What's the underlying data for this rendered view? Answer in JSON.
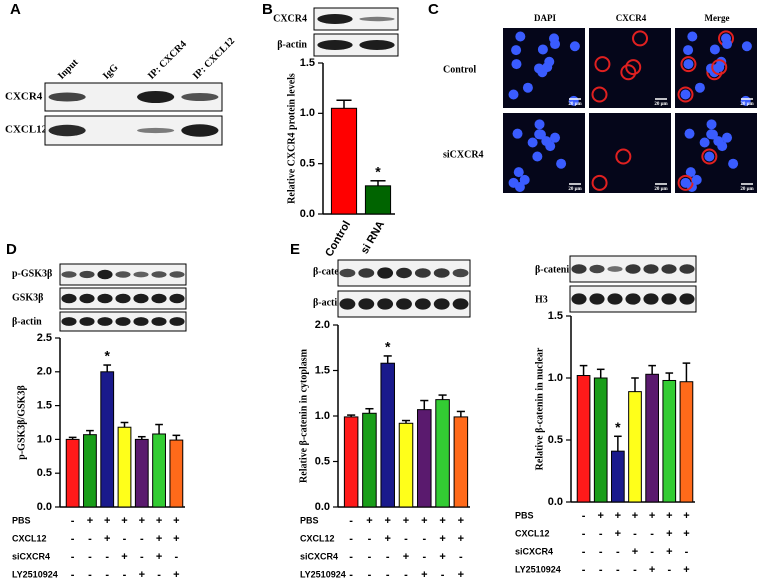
{
  "panels": {
    "A": {
      "label": "A",
      "lanes": [
        "Input",
        "IgG",
        "IP: CXCR4",
        "IP: CXCL12"
      ],
      "rows": [
        "CXCR4",
        "CXCL12"
      ]
    },
    "B": {
      "label": "B",
      "blots": [
        "CXCR4",
        "β-actin"
      ]
    },
    "C": {
      "label": "C",
      "columns": [
        "DAPI",
        "CXCR4",
        "Merge"
      ],
      "rows": [
        "Control",
        "siCXCR4"
      ],
      "scale": "20 μm"
    },
    "D": {
      "label": "D",
      "blots": [
        "p-GSK3β",
        "GSK3β",
        "β-actin"
      ]
    },
    "E": {
      "label": "E",
      "blots": [
        "β-catenin",
        "β-actin"
      ],
      "blots_right": [
        "β-catenin",
        "H3"
      ]
    }
  },
  "chart_data": [
    {
      "type": "bar",
      "ylabel": "Relative CXCR4 protein levels",
      "categories": [
        "Control",
        "si RNA"
      ],
      "values": [
        1.05,
        0.28
      ],
      "errors": [
        0.08,
        0.05
      ],
      "significance": [
        null,
        "*"
      ],
      "colors": [
        "#ff0000",
        "#006400"
      ],
      "ylim": [
        0,
        1.5
      ],
      "yticks": [
        {
          "value": 0,
          "label": "0.0"
        },
        0.5,
        {
          "value": 1,
          "label": "1.0"
        },
        1.5
      ]
    },
    {
      "type": "bar",
      "ylabel": "p-GSK3β/GSK3β",
      "categories": [
        null,
        null,
        null,
        null,
        null,
        null,
        null
      ],
      "values": [
        1.0,
        1.07,
        2.0,
        1.18,
        1.0,
        1.08,
        0.99
      ],
      "errors": [
        0.03,
        0.06,
        0.1,
        0.07,
        0.04,
        0.14,
        0.07
      ],
      "significance": [
        null,
        null,
        "*",
        null,
        null,
        null,
        null
      ],
      "colors": [
        "#ff1a1a",
        "#1a9e1a",
        "#1a1a8c",
        "#ffff1a",
        "#5a1a6e",
        "#33cc33",
        "#ff6a1a"
      ],
      "ylim": [
        0,
        2.5
      ],
      "yticks": [
        {
          "value": 0,
          "label": "0.0"
        },
        0.5,
        {
          "value": 1,
          "label": "1.0"
        },
        1.5,
        {
          "value": 2,
          "label": "2.0"
        },
        2.5
      ],
      "treatments": [
        {
          "label": "PBS",
          "signs": [
            "-",
            "+",
            "+",
            "+",
            "+",
            "+",
            "+"
          ]
        },
        {
          "label": "CXCL12",
          "signs": [
            "-",
            "-",
            "+",
            "-",
            "-",
            "+",
            "+"
          ]
        },
        {
          "label": "siCXCR4",
          "signs": [
            "-",
            "-",
            "-",
            "+",
            "-",
            "+",
            "-"
          ]
        },
        {
          "label": "LY2510924",
          "signs": [
            "-",
            "-",
            "-",
            "-",
            "+",
            "-",
            "+"
          ]
        }
      ]
    },
    {
      "type": "bar",
      "ylabel": "Relative β-catenin in cytoplasm",
      "categories": [
        null,
        null,
        null,
        null,
        null,
        null,
        null
      ],
      "values": [
        0.99,
        1.03,
        1.58,
        0.92,
        1.07,
        1.18,
        0.99
      ],
      "errors": [
        0.02,
        0.05,
        0.08,
        0.03,
        0.1,
        0.05,
        0.06
      ],
      "significance": [
        null,
        null,
        "*",
        null,
        null,
        null,
        null
      ],
      "colors": [
        "#ff1a1a",
        "#1a9e1a",
        "#1a1a8c",
        "#ffff1a",
        "#5a1a6e",
        "#33cc33",
        "#ff6a1a"
      ],
      "ylim": [
        0,
        2.0
      ],
      "yticks": [
        {
          "value": 0,
          "label": "0.0"
        },
        0.5,
        {
          "value": 1,
          "label": "1.0"
        },
        1.5,
        {
          "value": 2,
          "label": "2.0"
        }
      ],
      "treatments": [
        {
          "label": "PBS",
          "signs": [
            "-",
            "+",
            "+",
            "+",
            "+",
            "+",
            "+"
          ]
        },
        {
          "label": "CXCL12",
          "signs": [
            "-",
            "-",
            "+",
            "-",
            "-",
            "+",
            "+"
          ]
        },
        {
          "label": "siCXCR4",
          "signs": [
            "-",
            "-",
            "-",
            "+",
            "-",
            "+",
            "-"
          ]
        },
        {
          "label": "LY2510924",
          "signs": [
            "-",
            "-",
            "-",
            "-",
            "+",
            "-",
            "+"
          ]
        }
      ]
    },
    {
      "type": "bar",
      "ylabel": "Relative β-catenin in nuclear",
      "categories": [
        null,
        null,
        null,
        null,
        null,
        null,
        null
      ],
      "values": [
        1.02,
        1.0,
        0.41,
        0.89,
        1.03,
        0.98,
        0.97
      ],
      "errors": [
        0.08,
        0.07,
        0.12,
        0.11,
        0.07,
        0.06,
        0.15
      ],
      "significance": [
        null,
        null,
        "*",
        null,
        null,
        null,
        null
      ],
      "colors": [
        "#ff1a1a",
        "#1a9e1a",
        "#1a1a8c",
        "#ffff1a",
        "#5a1a6e",
        "#33cc33",
        "#ff6a1a"
      ],
      "ylim": [
        0,
        1.5
      ],
      "yticks": [
        {
          "value": 0,
          "label": "0.0"
        },
        0.5,
        {
          "value": 1,
          "label": "1.0"
        },
        1.5
      ],
      "treatments": [
        {
          "label": "PBS",
          "signs": [
            "-",
            "+",
            "+",
            "+",
            "+",
            "+",
            "+"
          ]
        },
        {
          "label": "CXCL12",
          "signs": [
            "-",
            "-",
            "+",
            "-",
            "-",
            "+",
            "+"
          ]
        },
        {
          "label": "siCXCR4",
          "signs": [
            "-",
            "-",
            "-",
            "+",
            "-",
            "+",
            "-"
          ]
        },
        {
          "label": "LY2510924",
          "signs": [
            "-",
            "-",
            "-",
            "-",
            "+",
            "-",
            "+"
          ]
        }
      ]
    }
  ]
}
